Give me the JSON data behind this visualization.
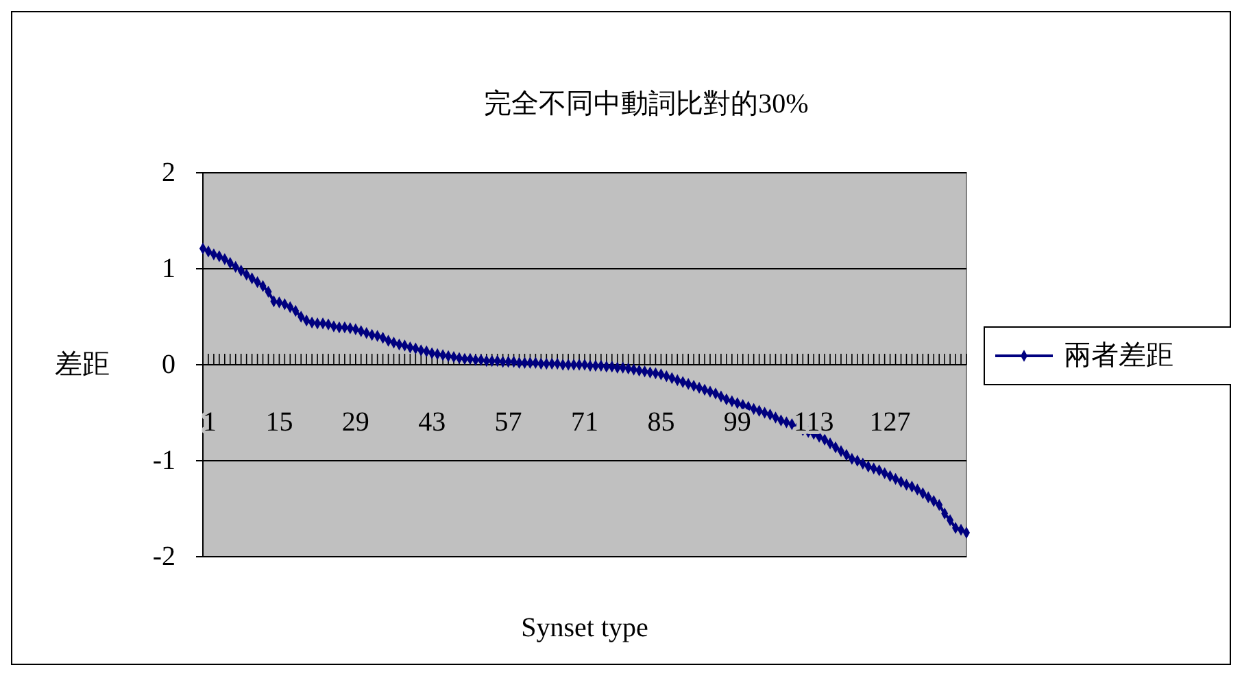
{
  "chart_data": {
    "type": "line",
    "title": "完全不同中動詞比對的30%",
    "xlabel": "Synset type",
    "ylabel": "差距",
    "categories": [
      "1",
      null,
      null,
      null,
      null,
      null,
      null,
      null,
      null,
      null,
      null,
      null,
      null,
      null,
      "15",
      null,
      null,
      null,
      null,
      null,
      null,
      null,
      null,
      null,
      null,
      null,
      null,
      null,
      "29",
      null,
      null,
      null,
      null,
      null,
      null,
      null,
      null,
      null,
      null,
      null,
      null,
      null,
      "43",
      null,
      null,
      null,
      null,
      null,
      null,
      null,
      null,
      null,
      null,
      null,
      null,
      null,
      "57",
      null,
      null,
      null,
      null,
      null,
      null,
      null,
      null,
      null,
      null,
      null,
      null,
      null,
      "71",
      null,
      null,
      null,
      null,
      null,
      null,
      null,
      null,
      null,
      null,
      null,
      null,
      null,
      "85",
      null,
      null,
      null,
      null,
      null,
      null,
      null,
      null,
      null,
      null,
      null,
      null,
      null,
      "99",
      null,
      null,
      null,
      null,
      null,
      null,
      null,
      null,
      null,
      null,
      null,
      null,
      null,
      "113",
      null,
      null,
      null,
      null,
      null,
      null,
      null,
      null,
      null,
      null,
      null,
      null,
      null,
      "127",
      null,
      null,
      null,
      null,
      null,
      null,
      null,
      null,
      null,
      null,
      null,
      null,
      null,
      null
    ],
    "series": [
      {
        "name": "兩者差距",
        "color": "#000080",
        "values": [
          1.21,
          1.18,
          1.15,
          1.13,
          1.1,
          1.06,
          1.02,
          0.98,
          0.94,
          0.9,
          0.86,
          0.82,
          0.76,
          0.66,
          0.65,
          0.63,
          0.6,
          0.56,
          0.5,
          0.46,
          0.44,
          0.43,
          0.43,
          0.42,
          0.4,
          0.39,
          0.39,
          0.38,
          0.37,
          0.35,
          0.33,
          0.31,
          0.3,
          0.28,
          0.25,
          0.23,
          0.21,
          0.2,
          0.18,
          0.17,
          0.15,
          0.14,
          0.12,
          0.11,
          0.1,
          0.09,
          0.08,
          0.07,
          0.06,
          0.06,
          0.05,
          0.05,
          0.04,
          0.04,
          0.04,
          0.03,
          0.03,
          0.03,
          0.02,
          0.02,
          0.02,
          0.02,
          0.01,
          0.01,
          0.01,
          0.01,
          0.0,
          0.0,
          0.0,
          0.0,
          0.0,
          -0.01,
          -0.01,
          -0.01,
          -0.02,
          -0.02,
          -0.03,
          -0.03,
          -0.04,
          -0.05,
          -0.06,
          -0.07,
          -0.08,
          -0.09,
          -0.1,
          -0.12,
          -0.14,
          -0.16,
          -0.18,
          -0.2,
          -0.22,
          -0.24,
          -0.26,
          -0.28,
          -0.3,
          -0.33,
          -0.36,
          -0.38,
          -0.4,
          -0.42,
          -0.44,
          -0.46,
          -0.48,
          -0.5,
          -0.52,
          -0.55,
          -0.58,
          -0.6,
          -0.62,
          -0.65,
          -0.68,
          -0.7,
          -0.72,
          -0.75,
          -0.78,
          -0.82,
          -0.86,
          -0.9,
          -0.94,
          -0.98,
          -1.0,
          -1.03,
          -1.06,
          -1.08,
          -1.1,
          -1.13,
          -1.16,
          -1.19,
          -1.22,
          -1.25,
          -1.27,
          -1.3,
          -1.34,
          -1.38,
          -1.42,
          -1.46,
          -1.55,
          -1.62,
          -1.7,
          -1.72,
          -1.75
        ]
      }
    ],
    "ylim": [
      -2,
      2
    ],
    "yticks": [
      -2,
      -1,
      0,
      1,
      2
    ],
    "grid": "y",
    "legend": "right",
    "marker": "diamond",
    "line_style": "solid"
  }
}
